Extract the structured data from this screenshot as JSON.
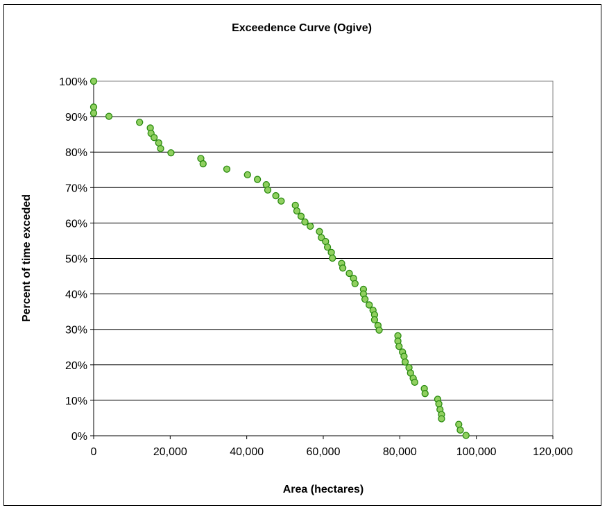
{
  "chart_data": {
    "type": "scatter",
    "title": "Exceedence Curve (Ogive)",
    "xlabel": "Area (hectares)",
    "ylabel": "Percent of time exceded",
    "xlim": [
      0,
      120000
    ],
    "ylim": [
      0,
      100
    ],
    "x_ticks": [
      "0",
      "20,000",
      "40,000",
      "60,000",
      "80,000",
      "100,000",
      "120,000"
    ],
    "y_ticks": [
      "0%",
      "10%",
      "20%",
      "30%",
      "40%",
      "50%",
      "60%",
      "70%",
      "80%",
      "90%",
      "100%"
    ],
    "x_tick_values": [
      0,
      20000,
      40000,
      60000,
      80000,
      100000,
      120000
    ],
    "y_tick_values": [
      0,
      10,
      20,
      30,
      40,
      50,
      60,
      70,
      80,
      90,
      100
    ],
    "grid": "horizontal",
    "legend": "none",
    "marker_fill": "#90d060",
    "marker_stroke": "#2a8a10",
    "plot_background": "#ffffff",
    "gridline_color": "#000000",
    "series": [
      {
        "points": [
          [
            0,
            100.0
          ],
          [
            0,
            92.7
          ],
          [
            0,
            91.0
          ],
          [
            4000,
            90.1
          ],
          [
            12000,
            88.4
          ],
          [
            14800,
            86.8
          ],
          [
            15000,
            85.3
          ],
          [
            15800,
            84.1
          ],
          [
            17000,
            82.6
          ],
          [
            17500,
            81.0
          ],
          [
            20200,
            79.8
          ],
          [
            28000,
            78.2
          ],
          [
            28600,
            76.7
          ],
          [
            34800,
            75.2
          ],
          [
            40200,
            73.6
          ],
          [
            42800,
            72.3
          ],
          [
            45100,
            70.8
          ],
          [
            45500,
            69.3
          ],
          [
            47600,
            67.7
          ],
          [
            49000,
            66.2
          ],
          [
            52700,
            65.0
          ],
          [
            53100,
            63.4
          ],
          [
            54200,
            61.9
          ],
          [
            55200,
            60.3
          ],
          [
            56600,
            59.1
          ],
          [
            59000,
            57.6
          ],
          [
            59500,
            55.9
          ],
          [
            60600,
            54.8
          ],
          [
            61100,
            53.2
          ],
          [
            62100,
            51.7
          ],
          [
            62400,
            50.1
          ],
          [
            64800,
            48.6
          ],
          [
            65100,
            47.3
          ],
          [
            66800,
            45.8
          ],
          [
            67900,
            44.4
          ],
          [
            68300,
            42.9
          ],
          [
            70500,
            41.3
          ],
          [
            70500,
            40.0
          ],
          [
            70900,
            38.5
          ],
          [
            72000,
            36.9
          ],
          [
            73000,
            35.4
          ],
          [
            73400,
            34.1
          ],
          [
            73400,
            32.7
          ],
          [
            74300,
            31.1
          ],
          [
            74600,
            29.8
          ],
          [
            79500,
            28.2
          ],
          [
            79500,
            26.7
          ],
          [
            79800,
            25.2
          ],
          [
            80700,
            23.6
          ],
          [
            81100,
            22.4
          ],
          [
            81400,
            20.8
          ],
          [
            82400,
            19.2
          ],
          [
            82800,
            17.7
          ],
          [
            83500,
            16.2
          ],
          [
            83900,
            15.1
          ],
          [
            86400,
            13.3
          ],
          [
            86600,
            11.9
          ],
          [
            89900,
            10.3
          ],
          [
            90200,
            9.0
          ],
          [
            90500,
            7.4
          ],
          [
            90900,
            6.0
          ],
          [
            90900,
            4.8
          ],
          [
            95400,
            3.2
          ],
          [
            95800,
            1.6
          ],
          [
            97300,
            0.1
          ]
        ]
      }
    ]
  }
}
